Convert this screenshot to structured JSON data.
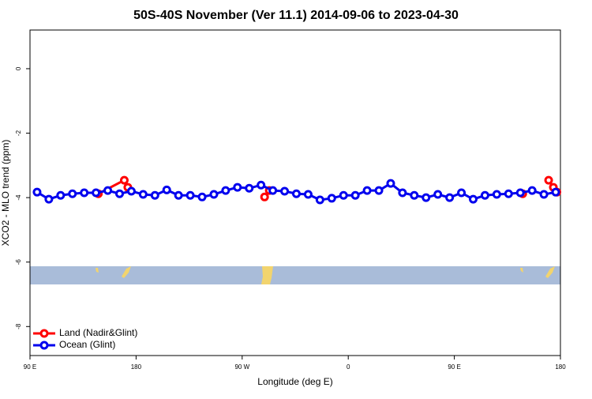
{
  "chart_data": {
    "type": "line",
    "title": "50S-40S November (Ver 11.1)   2014-09-06 to 2023-04-30",
    "xlabel": "Longitude (deg E)",
    "ylabel": "XCO2 - MLO trend (ppm)",
    "xlim": [
      90,
      540
    ],
    "ylim": [
      -8.9,
      1.2
    ],
    "xticks": [
      {
        "value": 90,
        "label": "90 E"
      },
      180,
      {
        "value": 270,
        "label": "90 W"
      },
      {
        "value": 360,
        "label": "0"
      },
      {
        "value": 450,
        "label": "90 E"
      },
      {
        "value": 540,
        "label": "180"
      }
    ],
    "yticks": [
      0,
      -2,
      -4,
      -6,
      -8
    ],
    "legend": "bottom-left",
    "series": [
      {
        "name": "Land (Nadir&Glint)",
        "color": "#ff0000",
        "x": [
          148,
          170,
          173,
          null,
          289,
          293,
          null,
          508,
          null,
          530,
          534,
          537
        ],
        "values": [
          -3.88,
          -3.46,
          -3.68,
          null,
          -3.98,
          -3.78,
          null,
          -3.88,
          null,
          -3.46,
          -3.68,
          -3.83
        ]
      },
      {
        "name": "Ocean (Glint)",
        "color": "#0000ee",
        "x": [
          96,
          106,
          116,
          126,
          136,
          146,
          156,
          166,
          176,
          186,
          196,
          206,
          216,
          226,
          236,
          246,
          256,
          266,
          276,
          286,
          296,
          306,
          316,
          326,
          336,
          346,
          356,
          366,
          376,
          386,
          396,
          406,
          416,
          426,
          436,
          446,
          456,
          466,
          476,
          486,
          496,
          506,
          516,
          526,
          536
        ],
        "values": [
          -3.83,
          -4.05,
          -3.93,
          -3.88,
          -3.85,
          -3.85,
          -3.78,
          -3.88,
          -3.8,
          -3.9,
          -3.93,
          -3.76,
          -3.93,
          -3.93,
          -3.98,
          -3.9,
          -3.78,
          -3.68,
          -3.71,
          -3.61,
          -3.78,
          -3.8,
          -3.88,
          -3.9,
          -4.07,
          -4.02,
          -3.93,
          -3.93,
          -3.78,
          -3.78,
          -3.56,
          -3.85,
          -3.93,
          -4.0,
          -3.9,
          -4.0,
          -3.85,
          -4.05,
          -3.93,
          -3.9,
          -3.88,
          -3.85,
          -3.78,
          -3.9,
          -3.83
        ]
      }
    ]
  }
}
